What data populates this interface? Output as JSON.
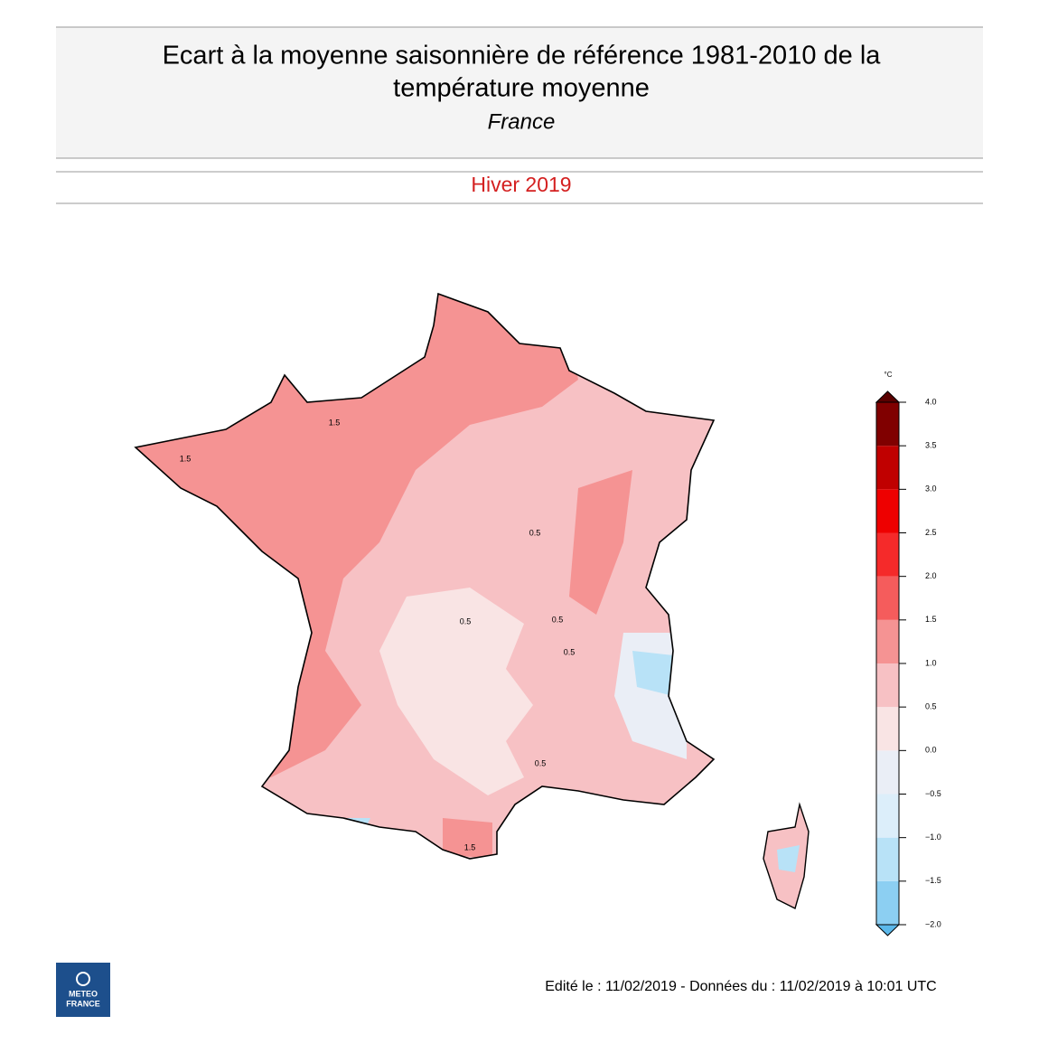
{
  "header": {
    "title": [
      "Ecart à la moyenne saisonnière de référence 1981-2010 de la",
      "température moyenne"
    ],
    "subtitle": "France",
    "season": "Hiver 2019"
  },
  "map": {
    "contour_labels": [
      "1.5",
      "1.5",
      "0.5",
      "0.5",
      "0.5",
      "0.5",
      "0.5",
      "1.5"
    ],
    "colorbar": {
      "unit": "°C",
      "ticks": [
        {
          "value": -2,
          "label": "−2.0"
        },
        {
          "value": -1.5,
          "label": "−1.5"
        },
        {
          "value": -1,
          "label": "−1.0"
        },
        {
          "value": -0.5,
          "label": "−0.5"
        },
        {
          "value": 0,
          "label": "0.0"
        },
        {
          "value": 0.5,
          "label": "0.5"
        },
        {
          "value": 1,
          "label": "1.0"
        },
        {
          "value": 1.5,
          "label": "1.5"
        },
        {
          "value": 2,
          "label": "2.0"
        },
        {
          "value": 2.5,
          "label": "2.5"
        },
        {
          "value": 3,
          "label": "3.0"
        },
        {
          "value": 3.5,
          "label": "3.5"
        },
        {
          "value": 4,
          "label": "4.0"
        }
      ],
      "colors": [
        "#8ccff2",
        "#b8e2f7",
        "#dceefa",
        "#eaeef6",
        "#f9e4e4",
        "#f7c1c4",
        "#f59393",
        "#f55c5c",
        "#f52a2a",
        "#ee0000",
        "#c00000",
        "#800000"
      ],
      "under_color": "#5bb8ea",
      "over_color": "#5a0000"
    }
  },
  "footer": {
    "text": "Edité le : 11/02/2019 - Données du : 11/02/2019 à 10:01 UTC"
  },
  "logo": {
    "text": [
      "METEO",
      "FRANCE"
    ]
  }
}
